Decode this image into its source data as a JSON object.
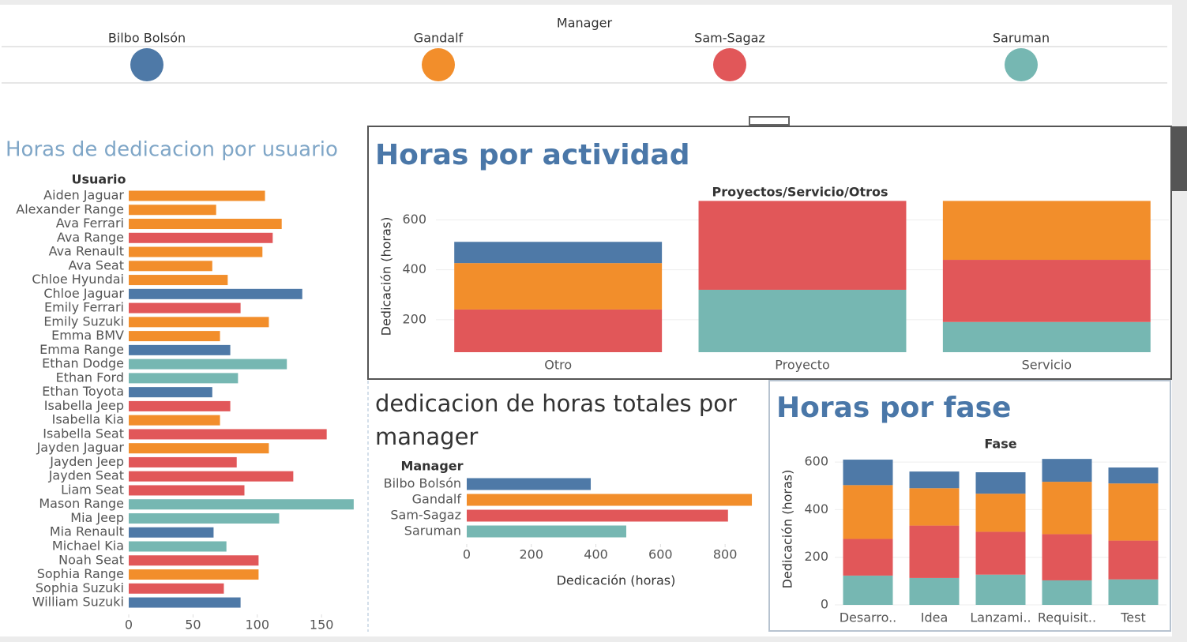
{
  "legend": {
    "title": "Manager",
    "items": [
      {
        "name": "Bilbo Bolsón",
        "color": "#4e79a7"
      },
      {
        "name": "Gandalf",
        "color": "#f28e2b"
      },
      {
        "name": "Sam-Sagaz",
        "color": "#e15759"
      },
      {
        "name": "Saruman",
        "color": "#76b7b2"
      }
    ]
  },
  "chart_data": [
    {
      "type": "barh",
      "title": "Horas de dedicacion por usuario",
      "category_header": "Usuario",
      "categories": [
        "Aiden Jaguar",
        "Alexander Range",
        "Ava Ferrari",
        "Ava Range",
        "Ava Renault",
        "Ava Seat",
        "Chloe Hyundai",
        "Chloe Jaguar",
        "Emily Ferrari",
        "Emily Suzuki",
        "Emma BMV",
        "Emma Range",
        "Ethan Dodge",
        "Ethan Ford",
        "Ethan Toyota",
        "Isabella Jeep",
        "Isabella Kia",
        "Isabella Seat",
        "Jayden Jaguar",
        "Jayden Jeep",
        "Jayden Seat",
        "Liam Seat",
        "Mason Range",
        "Mia Jeep",
        "Mia Renault",
        "Michael Kia",
        "Noah Seat",
        "Sophia Range",
        "Sophia Suzuki",
        "William Suzuki"
      ],
      "values": [
        106,
        68,
        119,
        112,
        104,
        65,
        77,
        135,
        87,
        109,
        71,
        79,
        123,
        85,
        65,
        79,
        71,
        154,
        109,
        84,
        128,
        90,
        175,
        117,
        66,
        76,
        101,
        101,
        74,
        87
      ],
      "colors": [
        "#f28e2b",
        "#f28e2b",
        "#f28e2b",
        "#e15759",
        "#f28e2b",
        "#f28e2b",
        "#f28e2b",
        "#4e79a7",
        "#e15759",
        "#f28e2b",
        "#f28e2b",
        "#4e79a7",
        "#76b7b2",
        "#76b7b2",
        "#4e79a7",
        "#e15759",
        "#f28e2b",
        "#e15759",
        "#f28e2b",
        "#e15759",
        "#e15759",
        "#e15759",
        "#76b7b2",
        "#76b7b2",
        "#4e79a7",
        "#76b7b2",
        "#e15759",
        "#f28e2b",
        "#e15759",
        "#4e79a7"
      ],
      "xlim": [
        0,
        180
      ],
      "xticks": [
        0,
        50,
        100,
        150
      ]
    },
    {
      "type": "stacked_bar",
      "title": "Horas por actividad",
      "header": "Proyectos/Servicio/Otros",
      "ylabel": "Dedicación (horas)",
      "categories": [
        "Otro",
        "Proyecto",
        "Servicio"
      ],
      "series": [
        {
          "color": "#76b7b2",
          "values": [
            0,
            320,
            191
          ]
        },
        {
          "color": "#e15759",
          "values": [
            241,
            356,
            249
          ]
        },
        {
          "color": "#f28e2b",
          "values": [
            186,
            0,
            236
          ]
        },
        {
          "color": "#4e79a7",
          "values": [
            85,
            0,
            0
          ]
        }
      ],
      "ylim": [
        70,
        690
      ],
      "yticks": [
        200,
        400,
        600
      ],
      "grid": true
    },
    {
      "type": "barh",
      "title": "dedicacion de horas totales por manager",
      "category_header": "Manager",
      "xlabel": "Dedicación (horas)",
      "categories": [
        "Bilbo Bolsón",
        "Gandalf",
        "Sam-Sagaz",
        "Saruman"
      ],
      "values": [
        384,
        883,
        809,
        494
      ],
      "colors": [
        "#4e79a7",
        "#f28e2b",
        "#e15759",
        "#76b7b2"
      ],
      "xlim": [
        0,
        900
      ],
      "xticks": [
        0,
        200,
        400,
        600,
        800
      ]
    },
    {
      "type": "stacked_bar",
      "title": "Horas por fase",
      "header": "Fase",
      "ylabel": "Dedicación (horas)",
      "categories": [
        "Desarro..",
        "Idea",
        "Lanzami..",
        "Requisit..",
        "Test"
      ],
      "series": [
        {
          "color": "#76b7b2",
          "values": [
            123,
            113,
            127,
            103,
            107
          ]
        },
        {
          "color": "#e15759",
          "values": [
            154,
            220,
            180,
            194,
            163
          ]
        },
        {
          "color": "#f28e2b",
          "values": [
            226,
            157,
            160,
            220,
            240
          ]
        },
        {
          "color": "#4e79a7",
          "values": [
            107,
            70,
            90,
            96,
            67
          ]
        }
      ],
      "ylim": [
        0,
        650
      ],
      "yticks": [
        0,
        200,
        400,
        600
      ],
      "grid": true
    }
  ]
}
